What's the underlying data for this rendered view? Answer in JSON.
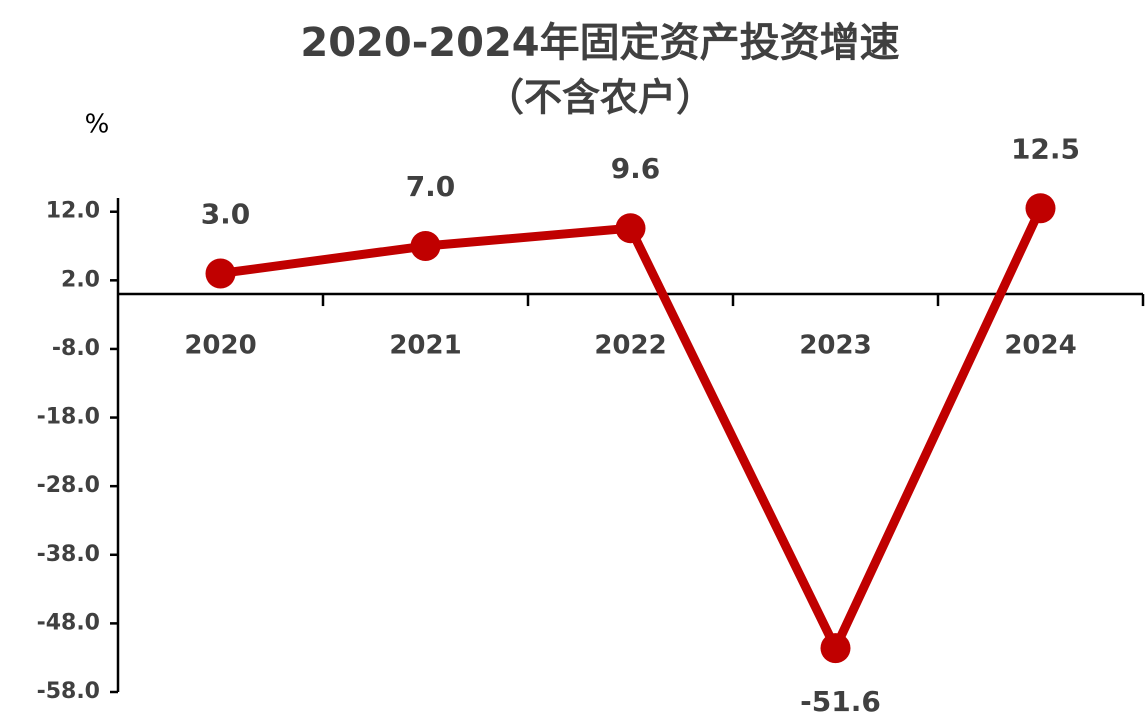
{
  "chart_data": {
    "type": "line",
    "title": "2020-2024年固定资产投资增速",
    "subtitle": "（不含农户）",
    "y_label": "%",
    "categories": [
      "2020",
      "2021",
      "2022",
      "2023",
      "2024"
    ],
    "series": [
      {
        "name": "固定资产投资增速",
        "color": "#c00000",
        "values": [
          3.0,
          7.0,
          9.6,
          -51.6,
          12.5
        ],
        "value_labels": [
          "3.0",
          "7.0",
          "9.6",
          "-51.6",
          "12.5"
        ]
      }
    ],
    "ylim": [
      -58,
      14
    ],
    "yticks": [
      {
        "value": 12,
        "label": "12.0"
      },
      {
        "value": 2,
        "label": "2.0"
      },
      {
        "value": -8,
        "label": "-8.0"
      },
      {
        "value": -18,
        "label": "-18.0"
      },
      {
        "value": -28,
        "label": "-28.0"
      },
      {
        "value": -38,
        "label": "-38.0"
      },
      {
        "value": -48,
        "label": "-48.0"
      },
      {
        "value": -58,
        "label": "-58.0"
      }
    ],
    "grid": false
  }
}
